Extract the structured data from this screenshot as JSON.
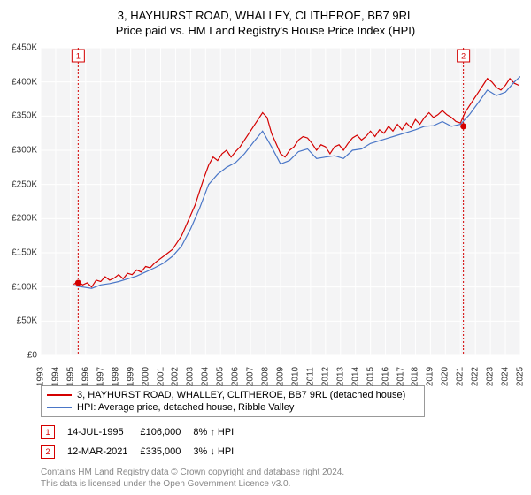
{
  "titles": {
    "line1": "3, HAYHURST ROAD, WHALLEY, CLITHEROE, BB7 9RL",
    "line2": "Price paid vs. HM Land Registry's House Price Index (HPI)"
  },
  "chart": {
    "type": "line",
    "background_color": "#f4f4f5",
    "grid_color": "#ffffff",
    "ylim": [
      0,
      450000
    ],
    "ytick_step": 50000,
    "y_ticks": [
      0,
      50000,
      100000,
      150000,
      200000,
      250000,
      300000,
      350000,
      400000,
      450000
    ],
    "y_tick_labels": [
      "£0",
      "£50K",
      "£100K",
      "£150K",
      "£200K",
      "£250K",
      "£300K",
      "£350K",
      "£400K",
      "£450K"
    ],
    "xlim": [
      1993,
      2025
    ],
    "x_ticks": [
      1993,
      1994,
      1995,
      1996,
      1997,
      1998,
      1999,
      2000,
      2001,
      2002,
      2003,
      2004,
      2005,
      2006,
      2007,
      2008,
      2009,
      2010,
      2011,
      2012,
      2013,
      2014,
      2015,
      2016,
      2017,
      2018,
      2019,
      2020,
      2021,
      2022,
      2023,
      2024,
      2025
    ],
    "series": [
      {
        "name": "3, HAYHURST ROAD, WHALLEY, CLITHEROE, BB7 9RL (detached house)",
        "color": "#d40000",
        "data": [
          [
            1995.2,
            104
          ],
          [
            1995.5,
            108
          ],
          [
            1995.8,
            103
          ],
          [
            1996.1,
            106
          ],
          [
            1996.4,
            100
          ],
          [
            1996.7,
            110
          ],
          [
            1997.0,
            108
          ],
          [
            1997.3,
            115
          ],
          [
            1997.6,
            110
          ],
          [
            1997.9,
            113
          ],
          [
            1998.2,
            118
          ],
          [
            1998.5,
            112
          ],
          [
            1998.8,
            120
          ],
          [
            1999.1,
            118
          ],
          [
            1999.4,
            125
          ],
          [
            1999.7,
            122
          ],
          [
            2000.0,
            130
          ],
          [
            2000.3,
            128
          ],
          [
            2000.6,
            135
          ],
          [
            2000.9,
            140
          ],
          [
            2001.2,
            145
          ],
          [
            2001.5,
            150
          ],
          [
            2001.8,
            155
          ],
          [
            2002.1,
            165
          ],
          [
            2002.4,
            175
          ],
          [
            2002.7,
            190
          ],
          [
            2003.0,
            205
          ],
          [
            2003.3,
            220
          ],
          [
            2003.6,
            240
          ],
          [
            2003.9,
            260
          ],
          [
            2004.2,
            278
          ],
          [
            2004.5,
            290
          ],
          [
            2004.8,
            285
          ],
          [
            2005.1,
            295
          ],
          [
            2005.4,
            300
          ],
          [
            2005.7,
            290
          ],
          [
            2006.0,
            298
          ],
          [
            2006.3,
            305
          ],
          [
            2006.6,
            315
          ],
          [
            2006.9,
            325
          ],
          [
            2007.2,
            335
          ],
          [
            2007.5,
            345
          ],
          [
            2007.8,
            355
          ],
          [
            2008.1,
            348
          ],
          [
            2008.4,
            325
          ],
          [
            2008.7,
            310
          ],
          [
            2009.0,
            295
          ],
          [
            2009.3,
            290
          ],
          [
            2009.6,
            300
          ],
          [
            2009.9,
            305
          ],
          [
            2010.2,
            315
          ],
          [
            2010.5,
            320
          ],
          [
            2010.8,
            318
          ],
          [
            2011.1,
            310
          ],
          [
            2011.4,
            300
          ],
          [
            2011.7,
            308
          ],
          [
            2012.0,
            305
          ],
          [
            2012.3,
            295
          ],
          [
            2012.6,
            305
          ],
          [
            2012.9,
            308
          ],
          [
            2013.2,
            300
          ],
          [
            2013.5,
            310
          ],
          [
            2013.8,
            318
          ],
          [
            2014.1,
            322
          ],
          [
            2014.4,
            315
          ],
          [
            2014.7,
            320
          ],
          [
            2015.0,
            328
          ],
          [
            2015.3,
            320
          ],
          [
            2015.6,
            330
          ],
          [
            2015.9,
            325
          ],
          [
            2016.2,
            335
          ],
          [
            2016.5,
            328
          ],
          [
            2016.8,
            338
          ],
          [
            2017.1,
            330
          ],
          [
            2017.4,
            340
          ],
          [
            2017.7,
            333
          ],
          [
            2018.0,
            345
          ],
          [
            2018.3,
            338
          ],
          [
            2018.6,
            348
          ],
          [
            2018.9,
            355
          ],
          [
            2019.2,
            348
          ],
          [
            2019.5,
            352
          ],
          [
            2019.8,
            358
          ],
          [
            2020.1,
            352
          ],
          [
            2020.4,
            348
          ],
          [
            2020.7,
            342
          ],
          [
            2021.0,
            340
          ],
          [
            2021.3,
            355
          ],
          [
            2021.6,
            365
          ],
          [
            2021.9,
            375
          ],
          [
            2022.2,
            385
          ],
          [
            2022.5,
            395
          ],
          [
            2022.8,
            405
          ],
          [
            2023.1,
            400
          ],
          [
            2023.4,
            392
          ],
          [
            2023.7,
            388
          ],
          [
            2024.0,
            395
          ],
          [
            2024.3,
            405
          ],
          [
            2024.6,
            398
          ],
          [
            2024.9,
            395
          ]
        ]
      },
      {
        "name": "HPI: Average price, detached house, Ribble Valley",
        "color": "#4a76c7",
        "data": [
          [
            1995.2,
            102
          ],
          [
            1995.8,
            100
          ],
          [
            1996.4,
            98
          ],
          [
            1997.0,
            103
          ],
          [
            1997.6,
            105
          ],
          [
            1998.2,
            108
          ],
          [
            1998.8,
            112
          ],
          [
            1999.4,
            116
          ],
          [
            2000.0,
            122
          ],
          [
            2000.6,
            128
          ],
          [
            2001.2,
            135
          ],
          [
            2001.8,
            145
          ],
          [
            2002.4,
            160
          ],
          [
            2003.0,
            185
          ],
          [
            2003.6,
            215
          ],
          [
            2004.2,
            250
          ],
          [
            2004.8,
            265
          ],
          [
            2005.4,
            275
          ],
          [
            2006.0,
            282
          ],
          [
            2006.6,
            295
          ],
          [
            2007.2,
            312
          ],
          [
            2007.8,
            328
          ],
          [
            2008.4,
            305
          ],
          [
            2009.0,
            280
          ],
          [
            2009.6,
            285
          ],
          [
            2010.2,
            298
          ],
          [
            2010.8,
            302
          ],
          [
            2011.4,
            288
          ],
          [
            2012.0,
            290
          ],
          [
            2012.6,
            292
          ],
          [
            2013.2,
            288
          ],
          [
            2013.8,
            300
          ],
          [
            2014.4,
            302
          ],
          [
            2015.0,
            310
          ],
          [
            2015.6,
            314
          ],
          [
            2016.2,
            318
          ],
          [
            2016.8,
            322
          ],
          [
            2017.4,
            326
          ],
          [
            2018.0,
            330
          ],
          [
            2018.6,
            335
          ],
          [
            2019.2,
            336
          ],
          [
            2019.8,
            342
          ],
          [
            2020.4,
            335
          ],
          [
            2021.0,
            338
          ],
          [
            2021.6,
            352
          ],
          [
            2022.2,
            370
          ],
          [
            2022.8,
            388
          ],
          [
            2023.4,
            380
          ],
          [
            2024.0,
            385
          ],
          [
            2024.6,
            400
          ],
          [
            2025.0,
            408
          ]
        ]
      }
    ],
    "markers": [
      {
        "n": "1",
        "x": 1995.5,
        "y": 106000,
        "color": "#d40000"
      },
      {
        "n": "2",
        "x": 2021.2,
        "y": 335000,
        "color": "#d40000"
      }
    ]
  },
  "legend": [
    {
      "color": "#d40000",
      "label": "3, HAYHURST ROAD, WHALLEY, CLITHEROE, BB7 9RL (detached house)"
    },
    {
      "color": "#4a76c7",
      "label": "HPI: Average price, detached house, Ribble Valley"
    }
  ],
  "sales": [
    {
      "n": "1",
      "color": "#d40000",
      "date": "14-JUL-1995",
      "price": "£106,000",
      "delta": "8% ↑ HPI"
    },
    {
      "n": "2",
      "color": "#d40000",
      "date": "12-MAR-2021",
      "price": "£335,000",
      "delta": "3% ↓ HPI"
    }
  ],
  "footer": {
    "l1": "Contains HM Land Registry data © Crown copyright and database right 2024.",
    "l2": "This data is licensed under the Open Government Licence v3.0."
  }
}
